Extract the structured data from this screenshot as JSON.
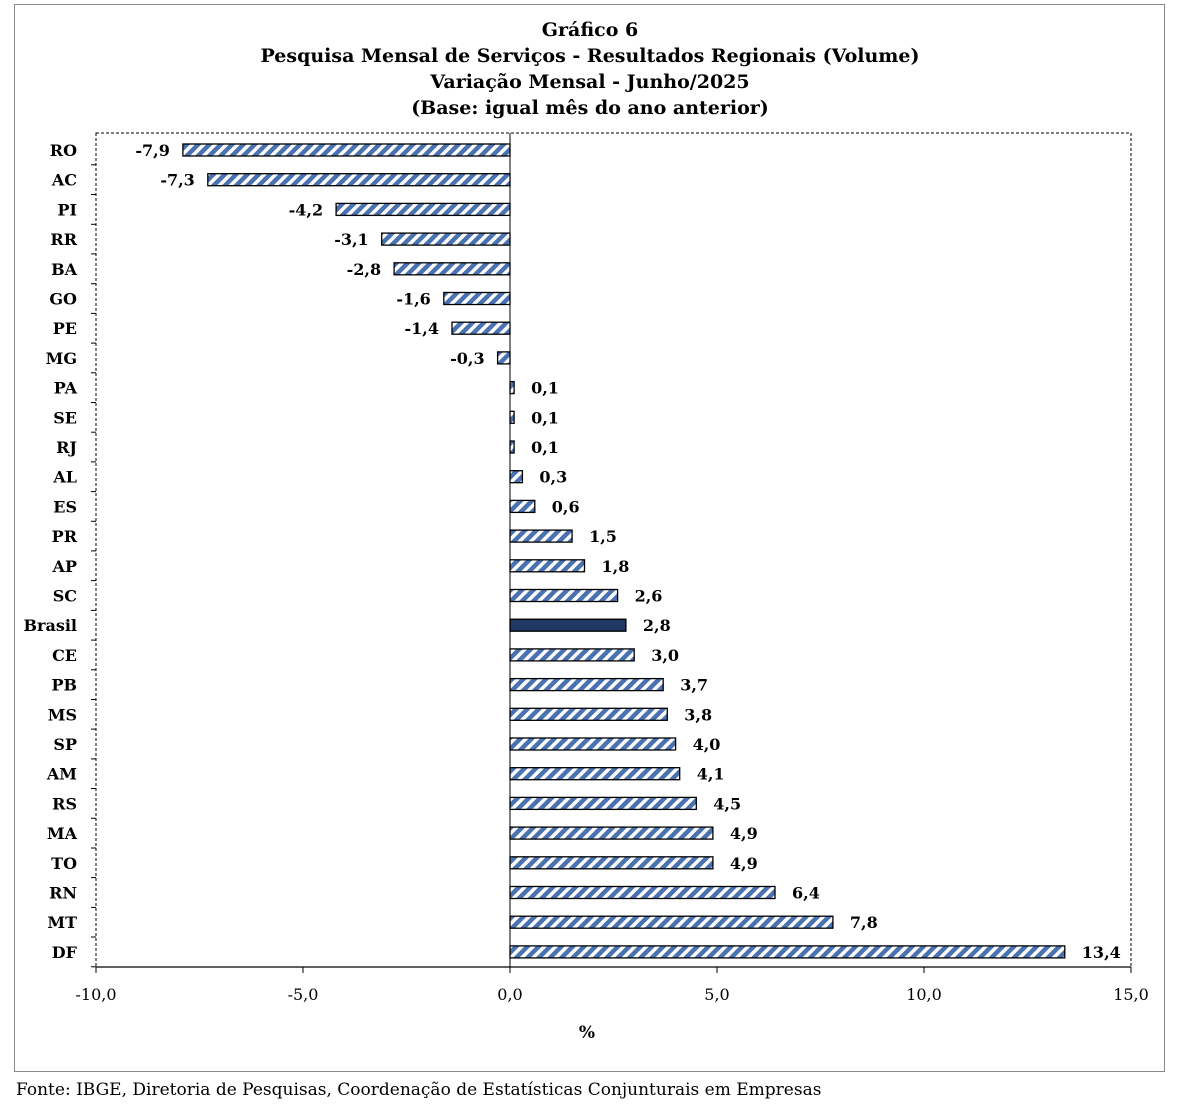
{
  "chart_data": {
    "type": "bar",
    "orientation": "horizontal",
    "title_lines": [
      "Gráfico 6",
      "Pesquisa  Mensal de Serviços - Resultados Regionais (Volume)",
      "Variação Mensal - Junho/2025",
      "(Base: igual mês do ano anterior)"
    ],
    "xlabel": "%",
    "xlim": [
      -10,
      15
    ],
    "x_ticks": [
      -10,
      -5,
      0,
      5,
      10,
      15
    ],
    "x_tick_labels": [
      "-10,0",
      "-5,0",
      "0,0",
      "5,0",
      "10,0",
      "15,0"
    ],
    "categories": [
      "RO",
      "AC",
      "PI",
      "RR",
      "BA",
      "GO",
      "PE",
      "MG",
      "PA",
      "SE",
      "RJ",
      "AL",
      "ES",
      "PR",
      "AP",
      "SC",
      "Brasil",
      "CE",
      "PB",
      "MS",
      "SP",
      "AM",
      "RS",
      "MA",
      "TO",
      "RN",
      "MT",
      "DF"
    ],
    "values": [
      -7.9,
      -7.3,
      -4.2,
      -3.1,
      -2.8,
      -1.6,
      -1.4,
      -0.3,
      0.1,
      0.1,
      0.1,
      0.3,
      0.6,
      1.5,
      1.8,
      2.6,
      2.8,
      3.0,
      3.7,
      3.8,
      4.0,
      4.1,
      4.5,
      4.9,
      4.9,
      6.4,
      7.8,
      13.4
    ],
    "value_labels": [
      "-7,9",
      "-7,3",
      "-4,2",
      "-3,1",
      "-2,8",
      "-1,6",
      "-1,4",
      "-0,3",
      "0,1",
      "0,1",
      "0,1",
      "0,3",
      "0,6",
      "1,5",
      "1,8",
      "2,6",
      "2,8",
      "3,0",
      "3,7",
      "3,8",
      "4,0",
      "4,1",
      "4,5",
      "4,9",
      "4,9",
      "6,4",
      "7,8",
      "13,4"
    ],
    "highlight_category": "Brasil",
    "colors": {
      "hatch_stripe": "#4a72b0",
      "hatch_background": "#ffffff",
      "highlight_fill": "#1f3864",
      "bar_outline": "#000000"
    },
    "grid": false,
    "legend": "none"
  },
  "footer": {
    "source": "Fonte: IBGE, Diretoria de Pesquisas, Coordenação de Estatísticas Conjunturais em Empresas"
  }
}
